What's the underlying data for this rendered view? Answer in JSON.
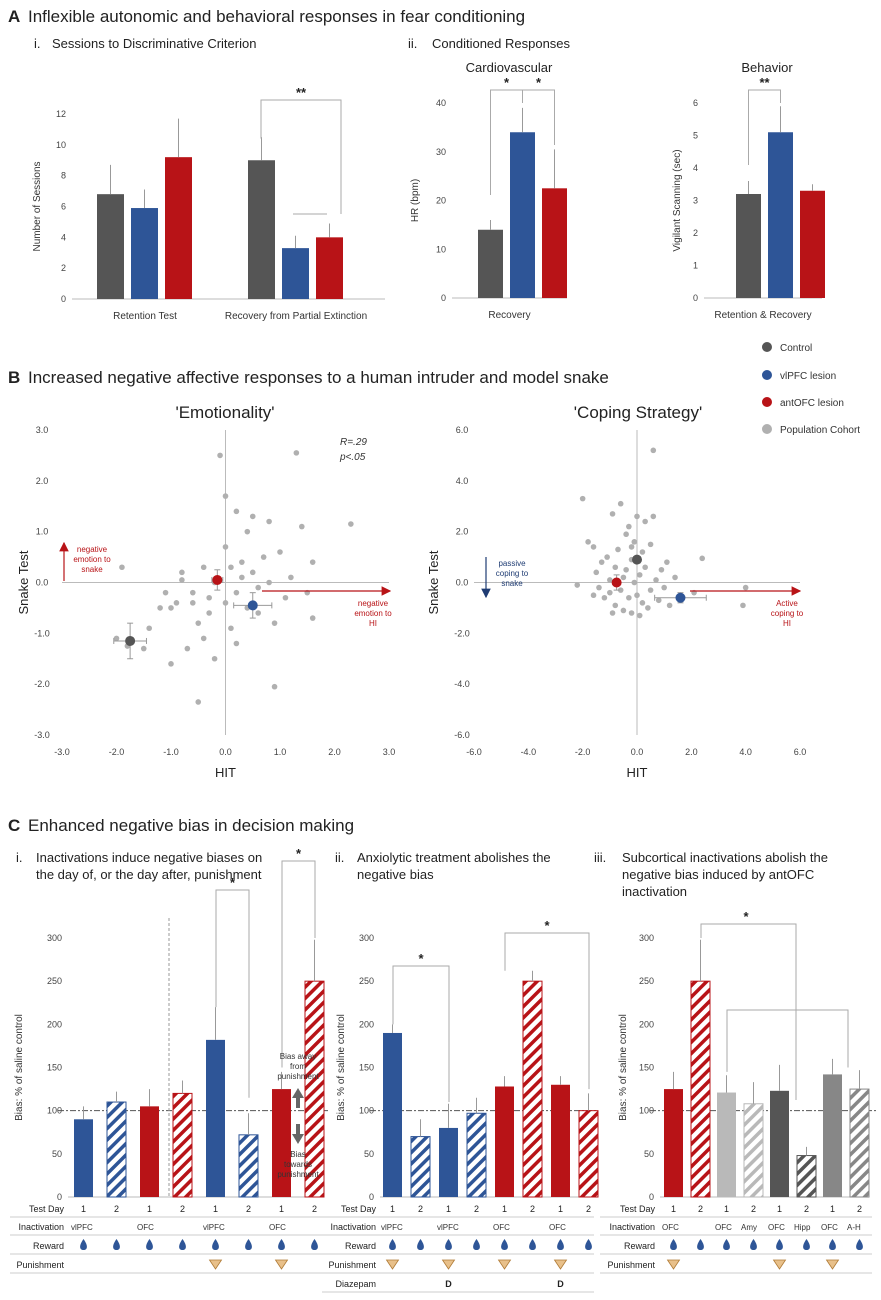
{
  "colors": {
    "control": "#555555",
    "vlpfc": "#2e5597",
    "antofc": "#b81317",
    "population": "#b0b0b0",
    "grey2": "#878787",
    "lightred": "#b9b9b9"
  },
  "panelA": {
    "letter": "A",
    "title": "Inflexible autonomic and behavioral responses in fear conditioning",
    "i_label": "i.",
    "i_title": "Sessions to Discriminative Criterion",
    "ii_label": "ii.",
    "ii_title": "Conditioned Responses",
    "stars": "**",
    "star": "*"
  },
  "panelB": {
    "letter": "B",
    "title": "Increased negative affective responses to a human intruder and model snake",
    "legend": [
      {
        "label": "Control",
        "color": "control"
      },
      {
        "label": "vlPFC lesion",
        "color": "vlpfc"
      },
      {
        "label": "antOFC lesion",
        "color": "antofc"
      },
      {
        "label": "Population Cohort",
        "color": "population"
      }
    ],
    "stats_r": "R=.29",
    "stats_p": "p<.05",
    "annot_left_1": [
      "negative",
      "emotion to",
      "snake"
    ],
    "annot_left_2": [
      "negative",
      "emotion to",
      "HI"
    ],
    "annot_right_1": [
      "passive",
      "coping to",
      "snake"
    ],
    "annot_right_2": [
      "Active",
      "coping to",
      "HI"
    ]
  },
  "panelC": {
    "letter": "C",
    "title": "Enhanced negative bias in decision making",
    "i_label": "i.",
    "i_title": [
      "Inactivations induce negative biases on",
      "the day of, or the day after, punishment"
    ],
    "ii_label": "ii.",
    "ii_title": [
      "Anxiolytic treatment abolishes the",
      "negative bias"
    ],
    "iii_label": "iii.",
    "iii_title": [
      "Subcortical inactivations abolish the",
      "negative bias induced by antOFC",
      "inactivation"
    ],
    "ylabel": "Bias: % of saline control",
    "arrow_up": [
      "Bias away",
      "from",
      "punishment"
    ],
    "arrow_down": [
      "Bias",
      "towards",
      "punishment"
    ],
    "row_test_day": "Test Day",
    "row_inactivation": "Inactivation",
    "row_reward": "Reward",
    "row_punishment": "Punishment",
    "row_diazepam": "Diazepam",
    "diazepam_mark": "D",
    "star": "*"
  },
  "chart_data": [
    {
      "id": "A-i",
      "type": "bar",
      "title": "Sessions to Discriminative Criterion",
      "ylabel": "Number of Sessions",
      "ylim": [
        0,
        12
      ],
      "yticks": [
        0,
        2,
        4,
        6,
        8,
        10,
        12
      ],
      "categories": [
        "Retention Test",
        "Recovery from Partial Extinction"
      ],
      "series": [
        {
          "name": "Control",
          "values": [
            6.8,
            9.0
          ],
          "err": [
            1.9,
            1.5
          ]
        },
        {
          "name": "vlPFC lesion",
          "values": [
            5.9,
            3.3
          ],
          "err": [
            1.2,
            0.8
          ]
        },
        {
          "name": "antOFC lesion",
          "values": [
            9.2,
            4.0
          ],
          "err": [
            2.5,
            0.9
          ]
        }
      ]
    },
    {
      "id": "A-ii-cardio",
      "type": "bar",
      "title": "Cardiovascular",
      "ylabel": "HR (bpm)",
      "xlabel": "Recovery",
      "ylim": [
        0,
        40
      ],
      "yticks": [
        0,
        10,
        20,
        30,
        40
      ],
      "categories": [
        "Control",
        "vlPFC lesion",
        "antOFC lesion"
      ],
      "values": [
        14,
        34,
        22.5
      ],
      "err": [
        2,
        5,
        8
      ]
    },
    {
      "id": "A-ii-behavior",
      "type": "bar",
      "title": "Behavior",
      "ylabel": "Vigilant Scanning (sec)",
      "xlabel": "Retention & Recovery",
      "ylim": [
        0,
        6
      ],
      "yticks": [
        0,
        1,
        2,
        3,
        4,
        5,
        6
      ],
      "categories": [
        "Control",
        "vlPFC lesion",
        "antOFC lesion"
      ],
      "values": [
        3.2,
        5.1,
        3.3
      ],
      "err": [
        0.4,
        0.8,
        0.2
      ]
    },
    {
      "id": "B-emotionality",
      "type": "scatter",
      "title": "'Emotionality'",
      "xlabel": "HIT",
      "ylabel": "Snake Test",
      "xlim": [
        -3,
        3
      ],
      "ylim": [
        -3,
        3
      ],
      "xticks": [
        "-3.0",
        "-2.0",
        "-1.0",
        "0.0",
        "1.0",
        "2.0",
        "3.0"
      ],
      "yticks": [
        "3.0",
        "2.0",
        "1.0",
        "0.0",
        "-1.0",
        "-2.0",
        "-3.0"
      ],
      "population": [
        [
          -2.0,
          -1.1
        ],
        [
          -1.8,
          -1.25
        ],
        [
          -1.5,
          -1.3
        ],
        [
          -1.4,
          -0.9
        ],
        [
          -1.0,
          -1.6
        ],
        [
          -0.9,
          -0.4
        ],
        [
          -0.8,
          0.2
        ],
        [
          -1.0,
          -0.5
        ],
        [
          -0.7,
          -1.3
        ],
        [
          -0.6,
          -0.2
        ],
        [
          -0.5,
          -0.8
        ],
        [
          -0.4,
          -1.1
        ],
        [
          -0.4,
          0.3
        ],
        [
          -0.3,
          -0.3
        ],
        [
          -0.3,
          -0.6
        ],
        [
          -0.2,
          -1.5
        ],
        [
          -0.2,
          0.0
        ],
        [
          -0.1,
          2.5
        ],
        [
          0.0,
          0.7
        ],
        [
          0.0,
          1.7
        ],
        [
          0.1,
          -0.9
        ],
        [
          0.1,
          0.3
        ],
        [
          0.2,
          -0.2
        ],
        [
          0.2,
          -1.2
        ],
        [
          0.3,
          0.1
        ],
        [
          0.3,
          0.4
        ],
        [
          0.4,
          -0.5
        ],
        [
          0.4,
          1.0
        ],
        [
          0.5,
          0.2
        ],
        [
          0.5,
          1.3
        ],
        [
          0.6,
          -0.6
        ],
        [
          0.6,
          -0.1
        ],
        [
          0.7,
          0.5
        ],
        [
          0.8,
          0.0
        ],
        [
          0.8,
          1.2
        ],
        [
          0.9,
          -0.8
        ],
        [
          0.9,
          -2.05
        ],
        [
          1.0,
          0.6
        ],
        [
          1.1,
          -0.3
        ],
        [
          1.2,
          0.1
        ],
        [
          1.3,
          2.55
        ],
        [
          1.4,
          1.1
        ],
        [
          1.5,
          -0.2
        ],
        [
          1.6,
          -0.7
        ],
        [
          1.6,
          0.4
        ],
        [
          2.3,
          1.15
        ],
        [
          -1.2,
          -0.5
        ],
        [
          -1.1,
          -0.2
        ],
        [
          -0.6,
          -0.4
        ],
        [
          -0.5,
          -2.35
        ],
        [
          0.0,
          -0.4
        ],
        [
          0.2,
          1.4
        ],
        [
          -1.9,
          0.3
        ],
        [
          -0.8,
          0.05
        ]
      ],
      "groups": [
        {
          "name": "Control",
          "x": -1.75,
          "y": -1.15,
          "xerr": 0.3,
          "yerr": 0.35
        },
        {
          "name": "vlPFC lesion",
          "x": 0.5,
          "y": -0.45,
          "xerr": 0.35,
          "yerr": 0.25
        },
        {
          "name": "antOFC lesion",
          "x": -0.15,
          "y": 0.05,
          "xerr": 0.1,
          "yerr": 0.2
        }
      ]
    },
    {
      "id": "B-coping",
      "type": "scatter",
      "title": "'Coping Strategy'",
      "xlabel": "HIT",
      "ylabel": "Snake Test",
      "xlim": [
        -6,
        6
      ],
      "ylim": [
        -6,
        6
      ],
      "xticks": [
        "-6.0",
        "-4.0",
        "-2.0",
        "0.0",
        "2.0",
        "4.0",
        "6.0"
      ],
      "yticks": [
        "6.0",
        "4.0",
        "2.0",
        "0.0",
        "-2.0",
        "-4.0",
        "-6.0"
      ],
      "population": [
        [
          -2.0,
          3.3
        ],
        [
          -1.8,
          1.6
        ],
        [
          -1.6,
          1.4
        ],
        [
          -1.5,
          0.4
        ],
        [
          -1.4,
          -0.2
        ],
        [
          -1.3,
          0.8
        ],
        [
          -1.2,
          -0.6
        ],
        [
          -1.1,
          1.0
        ],
        [
          -1.0,
          0.1
        ],
        [
          -1.0,
          -0.4
        ],
        [
          -0.9,
          2.7
        ],
        [
          -0.8,
          0.6
        ],
        [
          -0.8,
          -0.9
        ],
        [
          -0.7,
          1.3
        ],
        [
          -0.6,
          -0.3
        ],
        [
          -0.6,
          3.1
        ],
        [
          -0.5,
          0.2
        ],
        [
          -0.5,
          -1.1
        ],
        [
          -0.4,
          1.9
        ],
        [
          -0.4,
          0.5
        ],
        [
          -0.3,
          -0.6
        ],
        [
          -0.3,
          2.2
        ],
        [
          -0.2,
          -1.2
        ],
        [
          -0.2,
          0.9
        ],
        [
          -0.1,
          0.0
        ],
        [
          -0.1,
          1.6
        ],
        [
          0.0,
          -0.5
        ],
        [
          0.0,
          2.6
        ],
        [
          0.1,
          0.3
        ],
        [
          0.1,
          -1.3
        ],
        [
          0.2,
          1.2
        ],
        [
          0.2,
          -0.8
        ],
        [
          0.3,
          0.6
        ],
        [
          0.4,
          -1.0
        ],
        [
          0.5,
          1.5
        ],
        [
          0.5,
          -0.3
        ],
        [
          0.6,
          5.2
        ],
        [
          0.6,
          2.6
        ],
        [
          0.7,
          0.1
        ],
        [
          0.8,
          -0.7
        ],
        [
          0.9,
          0.5
        ],
        [
          1.0,
          -0.2
        ],
        [
          1.1,
          0.8
        ],
        [
          1.2,
          -0.9
        ],
        [
          1.4,
          0.2
        ],
        [
          2.1,
          -0.4
        ],
        [
          2.4,
          0.95
        ],
        [
          3.9,
          -0.9
        ],
        [
          4.0,
          -0.2
        ],
        [
          -1.6,
          -0.5
        ],
        [
          -0.9,
          -1.2
        ],
        [
          -0.2,
          1.4
        ],
        [
          0.3,
          2.4
        ],
        [
          -2.2,
          -0.1
        ]
      ],
      "groups": [
        {
          "name": "Control",
          "x": 0.0,
          "y": 0.9,
          "xerr": 0.05,
          "yerr": 0.1
        },
        {
          "name": "vlPFC lesion",
          "x": 1.6,
          "y": -0.6,
          "xerr": 0.95,
          "yerr": 0.2
        },
        {
          "name": "antOFC lesion",
          "x": -0.75,
          "y": 0.0,
          "xerr": 0.1,
          "yerr": 0.3
        }
      ]
    },
    {
      "id": "C-i",
      "type": "bar",
      "ylabel": "Bias: % of saline control",
      "ylim": [
        0,
        300
      ],
      "yticks": [
        0,
        50,
        100,
        150,
        200,
        250,
        300
      ],
      "bars": [
        {
          "day": "1",
          "value": 90,
          "err": 15,
          "color": "vlpfc",
          "hatch": false
        },
        {
          "day": "2",
          "value": 110,
          "err": 12,
          "color": "vlpfc",
          "hatch": true
        },
        {
          "day": "1",
          "value": 105,
          "err": 20,
          "color": "antofc",
          "hatch": false
        },
        {
          "day": "2",
          "value": 120,
          "err": 15,
          "color": "antofc",
          "hatch": true
        },
        {
          "day": "1",
          "value": 182,
          "err": 38,
          "color": "vlpfc",
          "hatch": false
        },
        {
          "day": "2",
          "value": 72,
          "err": 25,
          "color": "vlpfc",
          "hatch": true
        },
        {
          "day": "1",
          "value": 125,
          "err": 20,
          "color": "antofc",
          "hatch": false
        },
        {
          "day": "2",
          "value": 250,
          "err": 48,
          "color": "antofc",
          "hatch": true
        }
      ],
      "inactivation": [
        "vlPFC",
        "OFC",
        "vlPFC",
        "OFC"
      ],
      "punishment": [
        false,
        false,
        true,
        true
      ]
    },
    {
      "id": "C-ii",
      "type": "bar",
      "ylabel": "Bias: % of saline control",
      "ylim": [
        0,
        300
      ],
      "yticks": [
        0,
        50,
        100,
        150,
        200,
        250,
        300
      ],
      "bars": [
        {
          "day": "1",
          "value": 190,
          "err": 10,
          "color": "vlpfc",
          "hatch": false
        },
        {
          "day": "2",
          "value": 70,
          "err": 20,
          "color": "vlpfc",
          "hatch": true
        },
        {
          "day": "1",
          "value": 80,
          "err": 28,
          "color": "vlpfc",
          "hatch": false
        },
        {
          "day": "2",
          "value": 97,
          "err": 18,
          "color": "vlpfc",
          "hatch": true
        },
        {
          "day": "1",
          "value": 128,
          "err": 12,
          "color": "antofc",
          "hatch": false
        },
        {
          "day": "2",
          "value": 250,
          "err": 12,
          "color": "antofc",
          "hatch": true
        },
        {
          "day": "1",
          "value": 130,
          "err": 10,
          "color": "antofc",
          "hatch": false
        },
        {
          "day": "2",
          "value": 100,
          "err": 20,
          "color": "antofc",
          "hatch": true
        }
      ],
      "inactivation": [
        "vlPFC",
        "vlPFC",
        "OFC",
        "OFC"
      ],
      "punishment": [
        true,
        true,
        true,
        true
      ],
      "diazepam": [
        false,
        true,
        false,
        true
      ]
    },
    {
      "id": "C-iii",
      "type": "bar",
      "ylabel": "Bias: % of saline control",
      "ylim": [
        0,
        300
      ],
      "yticks": [
        0,
        50,
        100,
        150,
        200,
        250,
        300
      ],
      "bars": [
        {
          "day": "1",
          "value": 125,
          "err": 20,
          "color": "antofc",
          "hatch": false
        },
        {
          "day": "2",
          "value": 250,
          "err": 48,
          "color": "antofc",
          "hatch": true
        },
        {
          "day": "1",
          "value": 121,
          "err": 20,
          "color": "lightred",
          "hatch": false
        },
        {
          "day": "2",
          "value": 108,
          "err": 25,
          "color": "lightred",
          "hatch": true
        },
        {
          "day": "1",
          "value": 123,
          "err": 30,
          "color": "control",
          "hatch": false
        },
        {
          "day": "2",
          "value": 48,
          "err": 10,
          "color": "control",
          "hatch": true
        },
        {
          "day": "1",
          "value": 142,
          "err": 18,
          "color": "grey2",
          "hatch": false
        },
        {
          "day": "2",
          "value": 125,
          "err": 22,
          "color": "grey2",
          "hatch": true
        }
      ],
      "inactivation": [
        "OFC",
        "OFC",
        "Amy",
        "OFC",
        "Hipp",
        "OFC",
        "A-H"
      ],
      "punishment": [
        true,
        false,
        true,
        true
      ]
    }
  ]
}
